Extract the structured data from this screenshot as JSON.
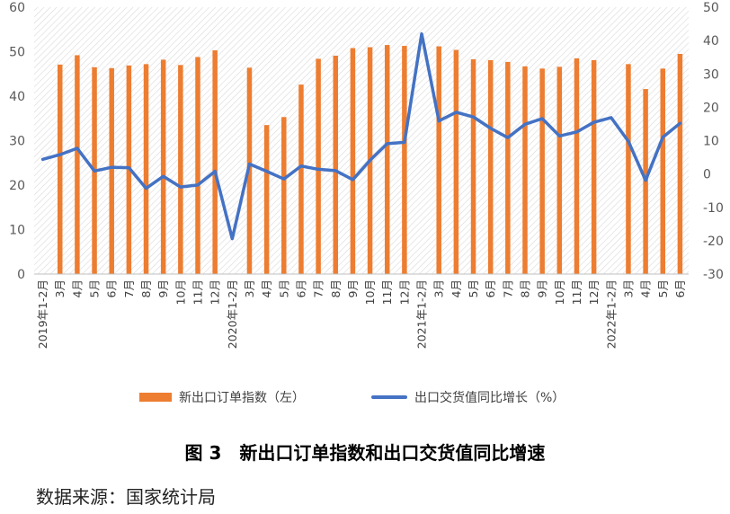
{
  "chart_data": {
    "type": "bar+line",
    "categories": [
      "2019年1-2月",
      "3月",
      "4月",
      "5月",
      "6月",
      "7月",
      "8月",
      "9月",
      "10月",
      "11月",
      "12月",
      "2020年1-2月",
      "3月",
      "4月",
      "5月",
      "6月",
      "7月",
      "8月",
      "9月",
      "10月",
      "11月",
      "12月",
      "2021年1-2月",
      "3月",
      "4月",
      "5月",
      "6月",
      "7月",
      "8月",
      "9月",
      "10月",
      "11月",
      "12月",
      "2022年1-2月",
      "3月",
      "4月",
      "5月",
      "6月"
    ],
    "series": [
      {
        "name": "新出口订单指数（左）",
        "type": "bar",
        "axis": "left",
        "color": "#ED7D31",
        "values": [
          null,
          47.1,
          49.2,
          46.5,
          46.3,
          46.9,
          47.2,
          48.2,
          47.0,
          48.8,
          50.3,
          null,
          46.4,
          33.5,
          35.3,
          42.6,
          48.4,
          49.1,
          50.8,
          51.0,
          51.5,
          51.3,
          null,
          51.2,
          50.4,
          48.3,
          48.1,
          47.7,
          46.7,
          46.2,
          46.6,
          48.5,
          48.1,
          null,
          47.2,
          41.6,
          46.2,
          49.5
        ]
      },
      {
        "name": "出口交货值同比增长（%）",
        "type": "line",
        "axis": "right",
        "color": "#4472C4",
        "values": [
          4.4,
          5.8,
          7.7,
          0.9,
          2.0,
          1.9,
          -4.3,
          -0.7,
          -3.9,
          -3.3,
          0.8,
          -19.4,
          3.0,
          0.8,
          -1.5,
          2.4,
          1.4,
          1.0,
          -1.7,
          4.1,
          9.1,
          9.5,
          42.0,
          15.9,
          18.5,
          17.1,
          13.7,
          10.9,
          14.9,
          16.6,
          11.4,
          12.6,
          15.5,
          16.9,
          9.8,
          -1.9,
          11.0,
          15.2
        ]
      }
    ],
    "y_left": {
      "min": 0,
      "max": 60,
      "step": 10,
      "ticks": [
        "0",
        "10",
        "20",
        "30",
        "40",
        "50",
        "60"
      ]
    },
    "y_right": {
      "min": -30,
      "max": 50,
      "step": 10,
      "ticks": [
        "-30",
        "-20",
        "-10",
        "0",
        "10",
        "20",
        "30",
        "40",
        "50"
      ]
    },
    "grid": false,
    "plot_background": "hatched",
    "legend_position": "bottom"
  },
  "legend": {
    "bar_label": "新出口订单指数（左）",
    "line_label": "出口交货值同比增长（%）"
  },
  "figure_title": "图 3　新出口订单指数和出口交货值同比增速",
  "source_text": "数据来源：国家统计局"
}
